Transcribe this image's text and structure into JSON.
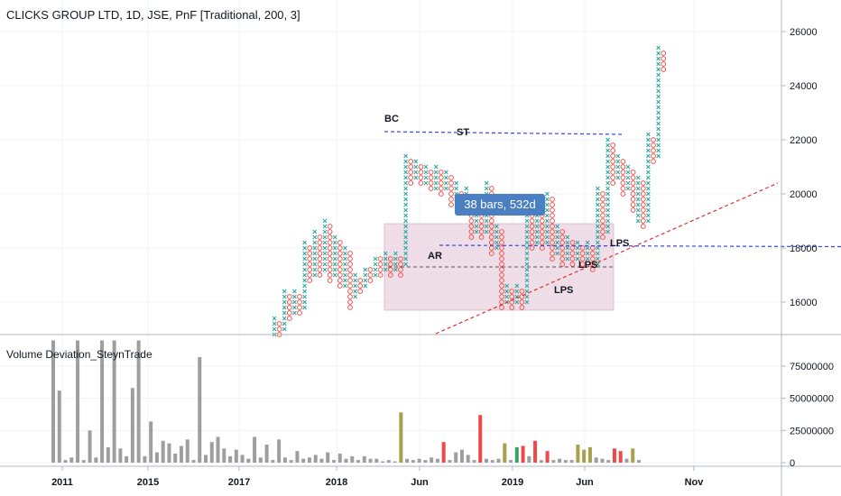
{
  "header": {
    "title": "CLICKS GROUP LTD, 1D, JSE, PnF [Traditional, 200, 3]"
  },
  "indicator": {
    "title": "Volume Deviation_SteynTrade"
  },
  "tooltip": {
    "text": "38 bars, 532d"
  },
  "annotations": {
    "bc": "BC",
    "st": "ST",
    "ar": "AR",
    "lps1": "LPS",
    "lps2": "LPS",
    "lps3": "LPS"
  },
  "colors": {
    "x_color": "#26a69a",
    "o_color": "#ef5350",
    "range_fill": "#e9d3df",
    "blue_line": "#3b46e0",
    "red_trend": "#e03131",
    "vol_gray": "#9e9e9e",
    "vol_olive": "#a6a14a",
    "vol_red": "#f04848",
    "vol_green": "#3aa069"
  },
  "chart_data": [
    {
      "type": "pnf",
      "title": "CLICKS GROUP LTD, 1D, JSE, PnF [Traditional, 200, 3]",
      "ylim": [
        14800,
        27000
      ],
      "y_ticks": [
        "26000",
        "24000",
        "22000",
        "20000",
        "18000",
        "16000"
      ],
      "x_ticks": [
        "2011",
        "2015",
        "2017",
        "2018",
        "Jun",
        "2019",
        "Jun",
        "Nov"
      ],
      "columns": [
        {
          "t": "X",
          "lo": 14800,
          "hi": 15400
        },
        {
          "t": "O",
          "lo": 14800,
          "hi": 15200
        },
        {
          "t": "X",
          "lo": 15000,
          "hi": 16400
        },
        {
          "t": "O",
          "lo": 15400,
          "hi": 16200
        },
        {
          "t": "X",
          "lo": 15600,
          "hi": 16400
        },
        {
          "t": "O",
          "lo": 15600,
          "hi": 16200
        },
        {
          "t": "X",
          "lo": 15800,
          "hi": 18200
        },
        {
          "t": "O",
          "lo": 16800,
          "hi": 18000
        },
        {
          "t": "X",
          "lo": 17000,
          "hi": 18600
        },
        {
          "t": "O",
          "lo": 17000,
          "hi": 18400
        },
        {
          "t": "X",
          "lo": 17200,
          "hi": 19000
        },
        {
          "t": "O",
          "lo": 16800,
          "hi": 18800
        },
        {
          "t": "X",
          "lo": 17000,
          "hi": 18400
        },
        {
          "t": "O",
          "lo": 16600,
          "hi": 18200
        },
        {
          "t": "X",
          "lo": 16600,
          "hi": 18000
        },
        {
          "t": "O",
          "lo": 15800,
          "hi": 17800
        },
        {
          "t": "X",
          "lo": 16200,
          "hi": 17000
        },
        {
          "t": "O",
          "lo": 16400,
          "hi": 16800
        },
        {
          "t": "X",
          "lo": 16600,
          "hi": 17200
        },
        {
          "t": "O",
          "lo": 16800,
          "hi": 17200
        },
        {
          "t": "X",
          "lo": 17000,
          "hi": 17600
        },
        {
          "t": "O",
          "lo": 17000,
          "hi": 17600
        },
        {
          "t": "X",
          "lo": 17200,
          "hi": 17800
        },
        {
          "t": "O",
          "lo": 17000,
          "hi": 17600
        },
        {
          "t": "X",
          "lo": 17200,
          "hi": 17800
        },
        {
          "t": "O",
          "lo": 17000,
          "hi": 17600
        },
        {
          "t": "X",
          "lo": 17400,
          "hi": 21400
        },
        {
          "t": "O",
          "lo": 20400,
          "hi": 21200
        },
        {
          "t": "X",
          "lo": 20600,
          "hi": 21200
        },
        {
          "t": "O",
          "lo": 20400,
          "hi": 21000
        },
        {
          "t": "X",
          "lo": 20400,
          "hi": 21000
        },
        {
          "t": "O",
          "lo": 20200,
          "hi": 20800
        },
        {
          "t": "X",
          "lo": 20200,
          "hi": 21000
        },
        {
          "t": "O",
          "lo": 20000,
          "hi": 20800
        },
        {
          "t": "X",
          "lo": 20200,
          "hi": 20800
        },
        {
          "t": "O",
          "lo": 19600,
          "hi": 20600
        },
        {
          "t": "X",
          "lo": 19800,
          "hi": 20400
        },
        {
          "t": "O",
          "lo": 19400,
          "hi": 20000
        },
        {
          "t": "X",
          "lo": 19600,
          "hi": 20200
        },
        {
          "t": "O",
          "lo": 18400,
          "hi": 19800
        },
        {
          "t": "X",
          "lo": 18600,
          "hi": 19400
        },
        {
          "t": "O",
          "lo": 18400,
          "hi": 19200
        },
        {
          "t": "X",
          "lo": 18600,
          "hi": 20400
        },
        {
          "t": "O",
          "lo": 17800,
          "hi": 20200
        },
        {
          "t": "X",
          "lo": 18000,
          "hi": 18800
        },
        {
          "t": "O",
          "lo": 15800,
          "hi": 18600
        },
        {
          "t": "X",
          "lo": 16000,
          "hi": 16600
        },
        {
          "t": "O",
          "lo": 15800,
          "hi": 16400
        },
        {
          "t": "X",
          "lo": 16000,
          "hi": 16600
        },
        {
          "t": "O",
          "lo": 15800,
          "hi": 16400
        },
        {
          "t": "X",
          "lo": 16000,
          "hi": 19800
        },
        {
          "t": "O",
          "lo": 18000,
          "hi": 19600
        },
        {
          "t": "X",
          "lo": 18200,
          "hi": 19600
        },
        {
          "t": "O",
          "lo": 18000,
          "hi": 19400
        },
        {
          "t": "X",
          "lo": 18200,
          "hi": 20000
        },
        {
          "t": "O",
          "lo": 17600,
          "hi": 19800
        },
        {
          "t": "X",
          "lo": 17800,
          "hi": 18800
        },
        {
          "t": "O",
          "lo": 17400,
          "hi": 18600
        },
        {
          "t": "X",
          "lo": 17600,
          "hi": 18400
        },
        {
          "t": "O",
          "lo": 17400,
          "hi": 18200
        },
        {
          "t": "X",
          "lo": 17600,
          "hi": 18200
        },
        {
          "t": "O",
          "lo": 17400,
          "hi": 18000
        },
        {
          "t": "X",
          "lo": 17600,
          "hi": 18200
        },
        {
          "t": "O",
          "lo": 17200,
          "hi": 18000
        },
        {
          "t": "X",
          "lo": 17400,
          "hi": 20200
        },
        {
          "t": "O",
          "lo": 18400,
          "hi": 20000
        },
        {
          "t": "X",
          "lo": 18600,
          "hi": 22000
        },
        {
          "t": "O",
          "lo": 20400,
          "hi": 21800
        },
        {
          "t": "X",
          "lo": 20600,
          "hi": 21400
        },
        {
          "t": "O",
          "lo": 20000,
          "hi": 21200
        },
        {
          "t": "X",
          "lo": 20200,
          "hi": 21000
        },
        {
          "t": "O",
          "lo": 19400,
          "hi": 20800
        },
        {
          "t": "X",
          "lo": 19000,
          "hi": 20600
        },
        {
          "t": "O",
          "lo": 18800,
          "hi": 20400
        },
        {
          "t": "X",
          "lo": 19000,
          "hi": 22200
        },
        {
          "t": "O",
          "lo": 21200,
          "hi": 22000
        },
        {
          "t": "X",
          "lo": 21400,
          "hi": 25400
        },
        {
          "t": "O",
          "lo": 24600,
          "hi": 25200
        }
      ]
    },
    {
      "type": "bar",
      "title": "Volume Deviation_SteynTrade",
      "ylim": [
        0,
        95000000
      ],
      "y_ticks": [
        "75000000",
        "50000000",
        "25000000",
        "0"
      ],
      "values": [
        95000000,
        56000000,
        2000000,
        4000000,
        95000000,
        2000000,
        25000000,
        4000000,
        95000000,
        12000000,
        95000000,
        11000000,
        5000000,
        58000000,
        95000000,
        5000000,
        32000000,
        8000000,
        17000000,
        15000000,
        7000000,
        13000000,
        18000000,
        2000000,
        82000000,
        6000000,
        16000000,
        20000000,
        11000000,
        5000000,
        10000000,
        6000000,
        3000000,
        20000000,
        4000000,
        14000000,
        2000000,
        18000000,
        4000000,
        2000000,
        9000000,
        3000000,
        4000000,
        6000000,
        3000000,
        8000000,
        2000000,
        7000000,
        3000000,
        5000000,
        2000000,
        5000000,
        3000000,
        3000000,
        1000000,
        2000000,
        1000000,
        39000000,
        3000000,
        2000000,
        3000000,
        2000000,
        4000000,
        3000000,
        16000000,
        2000000,
        8000000,
        10000000,
        6000000,
        2000000,
        37000000,
        3000000,
        2000000,
        3000000,
        15000000,
        2000000,
        12000000,
        13000000,
        5000000,
        17000000,
        2000000,
        9000000,
        2000000,
        3000000,
        2000000,
        2000000,
        14000000,
        10000000,
        12000000,
        4000000,
        3000000,
        2000000,
        11000000,
        9000000,
        3000000,
        11000000,
        2000000
      ],
      "colors": [
        "g",
        "g",
        "g",
        "g",
        "g",
        "g",
        "g",
        "g",
        "g",
        "g",
        "g",
        "g",
        "g",
        "g",
        "g",
        "g",
        "g",
        "g",
        "g",
        "g",
        "g",
        "g",
        "g",
        "g",
        "g",
        "g",
        "g",
        "g",
        "g",
        "g",
        "g",
        "g",
        "g",
        "g",
        "g",
        "g",
        "g",
        "g",
        "g",
        "g",
        "g",
        "g",
        "g",
        "g",
        "g",
        "g",
        "g",
        "g",
        "g",
        "g",
        "g",
        "g",
        "g",
        "g",
        "g",
        "g",
        "g",
        "o",
        "g",
        "g",
        "g",
        "g",
        "g",
        "g",
        "r",
        "g",
        "g",
        "g",
        "g",
        "g",
        "r",
        "g",
        "g",
        "g",
        "o",
        "g",
        "v",
        "r",
        "g",
        "r",
        "g",
        "r",
        "g",
        "g",
        "g",
        "g",
        "o",
        "o",
        "o",
        "g",
        "g",
        "g",
        "r",
        "r",
        "g",
        "o",
        "g"
      ]
    }
  ]
}
